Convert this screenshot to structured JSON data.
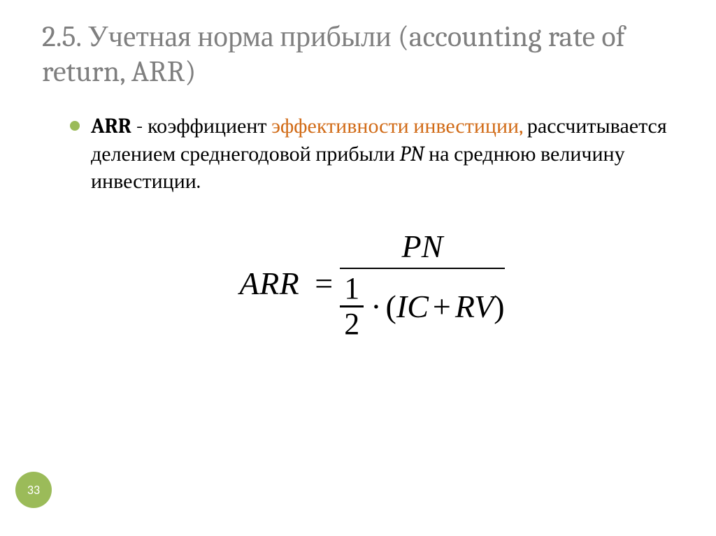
{
  "colors": {
    "title": "#7f7f7f",
    "body_text": "#000000",
    "highlight": "#d16b17",
    "bullet": "#9bbb59",
    "badge_bg": "#9bbb59",
    "badge_text": "#ffffff",
    "background": "#ffffff"
  },
  "typography": {
    "title_fontsize": 42,
    "body_fontsize": 30,
    "formula_fontsize": 46,
    "badge_fontsize": 18,
    "title_family": "Cambria, Georgia, serif",
    "formula_family": "Times New Roman, serif"
  },
  "title": "2.5. Учетная норма прибыли (accounting rate of return, ARR)",
  "para": {
    "lead_bold": "ARR",
    "dash": " - ",
    "t1": "коэффициент ",
    "highlight": "эффективности инвестиции,",
    "t2": " рассчитывается делением среднегодовой прибыли ",
    "pn": "PN",
    "t3": " на среднюю величину инвестиции."
  },
  "formula": {
    "lhs": "ARR",
    "eq": "=",
    "numerator": "PN",
    "half_num": "1",
    "half_den": "2",
    "cdot": "·",
    "open": "(",
    "ic": "IC",
    "plus": "+",
    "rv": "RV",
    "close": ")"
  },
  "page_number": "33"
}
